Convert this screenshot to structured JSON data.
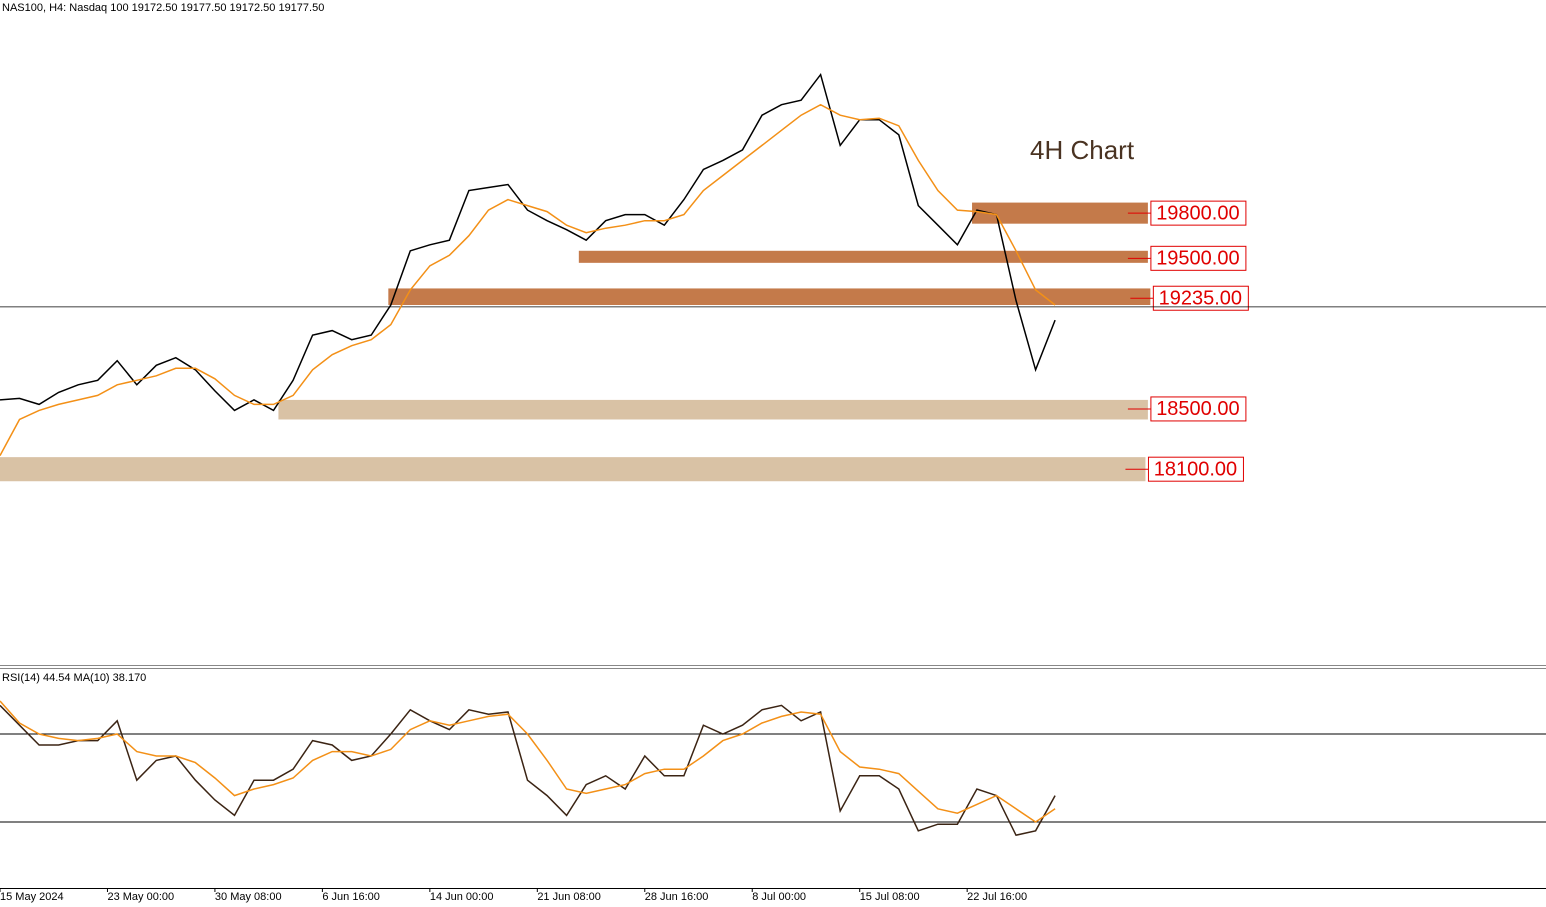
{
  "chart_data": [
    {
      "type": "line",
      "title": "NAS100, H4:  Nasdaq 100  19172.50 19177.50 19172.50 19177.50",
      "annotation": "4H Chart",
      "x": [
        0,
        8,
        16,
        24,
        32,
        40,
        48,
        56,
        64,
        72,
        80,
        88,
        96,
        104,
        112,
        120,
        128,
        136,
        144,
        152,
        160,
        168,
        176,
        184,
        192,
        200,
        208,
        216,
        224,
        232,
        240,
        248,
        256,
        264,
        272,
        280,
        288,
        296,
        304,
        312,
        320,
        328,
        336,
        344,
        352,
        360,
        368,
        376,
        384,
        392,
        400,
        408,
        416,
        424,
        432
      ],
      "xlim": [
        0,
        633
      ],
      "ylim": [
        16800,
        21215
      ],
      "series": [
        {
          "color": "#000000",
          "values": [
            18560,
            18570,
            18530,
            18610,
            18660,
            18690,
            18820,
            18660,
            18790,
            18840,
            18760,
            18620,
            18490,
            18560,
            18490,
            18690,
            18990,
            19020,
            18960,
            18990,
            19190,
            19550,
            19590,
            19620,
            19950,
            19970,
            19990,
            19820,
            19750,
            19690,
            19620,
            19750,
            19790,
            19790,
            19720,
            19890,
            20090,
            20150,
            20220,
            20450,
            20520,
            20550,
            20720,
            20250,
            20420,
            20420,
            20320,
            19850,
            19720,
            19590,
            19820,
            19790,
            19220,
            18760,
            19090
          ]
        },
        {
          "color": "#f39017",
          "values": [
            18190,
            18430,
            18490,
            18530,
            18560,
            18590,
            18660,
            18690,
            18720,
            18770,
            18770,
            18700,
            18590,
            18530,
            18530,
            18590,
            18760,
            18860,
            18920,
            18960,
            19060,
            19290,
            19450,
            19520,
            19650,
            19820,
            19890,
            19850,
            19810,
            19720,
            19670,
            19700,
            19720,
            19750,
            19750,
            19790,
            19950,
            20050,
            20150,
            20250,
            20350,
            20450,
            20520,
            20450,
            20420,
            20430,
            20380,
            20150,
            19950,
            19820,
            19810,
            19790,
            19550,
            19290,
            19190
          ]
        }
      ],
      "last_price": 19177.5,
      "zones": [
        {
          "level": 19800,
          "label": "19800.00",
          "low": 19730,
          "high": 19870,
          "start": 398,
          "end": 470,
          "color": "#c47a4a"
        },
        {
          "level": 19500,
          "label": "19500.00",
          "low": 19470,
          "high": 19550,
          "start": 237,
          "end": 470,
          "color": "#c47a4a"
        },
        {
          "level": 19235,
          "label": "19235.00",
          "low": 19190,
          "high": 19300,
          "start": 159,
          "end": 471,
          "color": "#c47a4a"
        },
        {
          "level": 18500,
          "label": "18500.00",
          "low": 18430,
          "high": 18560,
          "start": 114,
          "end": 470,
          "color": "#d9c2a5"
        },
        {
          "level": 18100,
          "label": "18100.00",
          "low": 18020,
          "high": 18180,
          "start": 0,
          "end": 469,
          "color": "#d9c2a5"
        }
      ]
    },
    {
      "type": "line",
      "title": "RSI(14) 44.54 MA(10) 38.170",
      "x": [
        0,
        8,
        16,
        24,
        32,
        40,
        48,
        56,
        64,
        72,
        80,
        88,
        96,
        104,
        112,
        120,
        128,
        136,
        144,
        152,
        160,
        168,
        176,
        184,
        192,
        200,
        208,
        216,
        224,
        232,
        240,
        248,
        256,
        264,
        272,
        280,
        288,
        296,
        304,
        312,
        320,
        328,
        336,
        344,
        352,
        360,
        368,
        376,
        384,
        392,
        400,
        408,
        416,
        424,
        432
      ],
      "xlim": [
        0,
        633
      ],
      "ylim": [
        0,
        100
      ],
      "levels": [
        70,
        30
      ],
      "xticks": [
        {
          "value": 0,
          "label": "15 May 2024"
        },
        {
          "value": 44,
          "label": "23 May 00:00"
        },
        {
          "value": 88,
          "label": "30 May 08:00"
        },
        {
          "value": 132,
          "label": "6 Jun 16:00"
        },
        {
          "value": 176,
          "label": "14 Jun 00:00"
        },
        {
          "value": 220,
          "label": "21 Jun 08:00"
        },
        {
          "value": 264,
          "label": "28 Jun 16:00"
        },
        {
          "value": 308,
          "label": "8 Jul 00:00"
        },
        {
          "value": 352,
          "label": "15 Jul 08:00"
        },
        {
          "value": 396,
          "label": "22 Jul 16:00"
        }
      ],
      "series": [
        {
          "color": "#3b2414",
          "values": [
            83,
            74,
            65,
            65,
            67,
            67,
            76,
            49,
            58,
            60,
            49,
            40,
            33,
            49,
            49,
            54,
            67,
            65,
            58,
            60,
            70,
            81,
            76,
            72,
            81,
            79,
            80,
            49,
            42,
            33,
            47,
            51,
            45,
            60,
            51,
            51,
            74,
            70,
            74,
            81,
            83,
            76,
            80,
            35,
            51,
            51,
            45,
            26,
            29,
            29,
            45,
            42,
            24,
            26,
            42
          ]
        },
        {
          "color": "#f39017",
          "values": [
            85,
            75,
            70,
            68,
            67,
            68,
            70,
            62,
            60,
            60,
            57,
            50,
            42,
            45,
            47,
            50,
            58,
            62,
            62,
            60,
            63,
            72,
            76,
            74,
            76,
            78,
            79,
            70,
            58,
            45,
            43,
            45,
            47,
            52,
            54,
            54,
            60,
            67,
            70,
            75,
            78,
            80,
            79,
            62,
            55,
            54,
            52,
            44,
            36,
            34,
            38,
            42,
            36,
            30,
            36
          ]
        }
      ]
    }
  ]
}
